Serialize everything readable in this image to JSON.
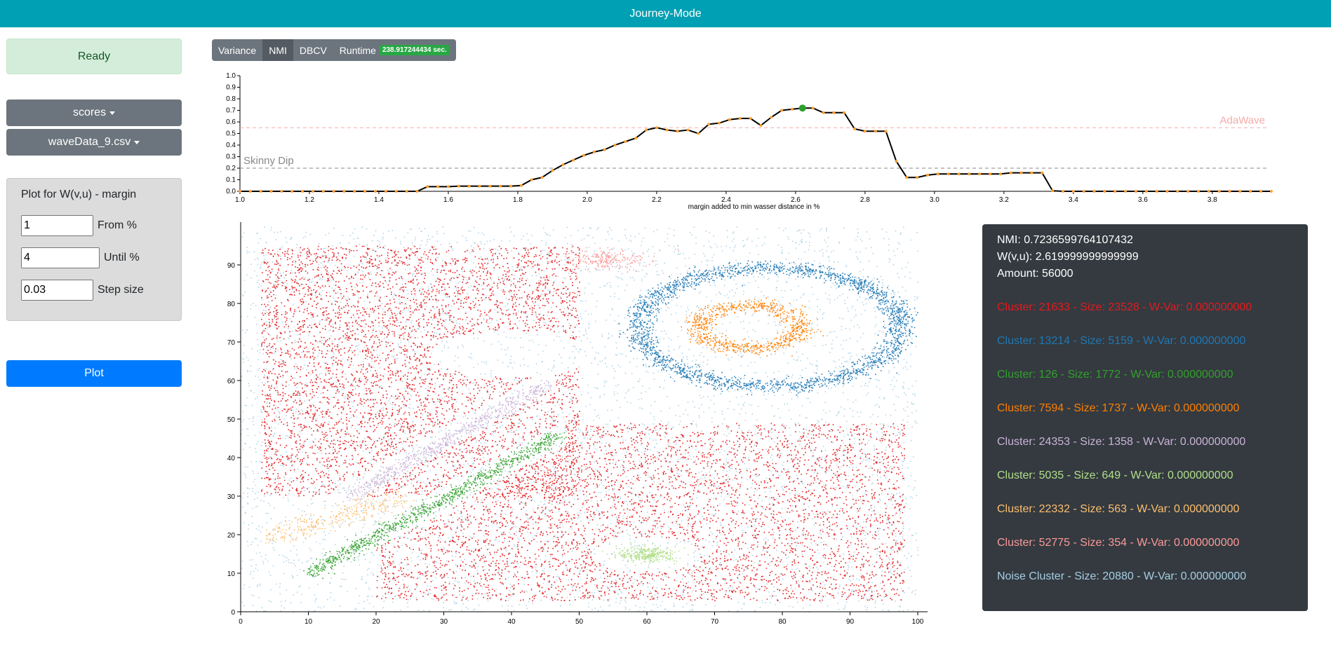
{
  "header": {
    "title": "Journey-Mode"
  },
  "status": {
    "text": "Ready"
  },
  "dropdowns": {
    "metric": "scores",
    "dataset": "waveData_9.csv"
  },
  "form": {
    "title": "Plot for W(v,u) - margin",
    "from_value": "1",
    "from_label": "From %",
    "until_value": "4",
    "until_label": "Until %",
    "step_value": "0.03",
    "step_label": "Step size"
  },
  "plot_button": "Plot",
  "tabs": [
    {
      "label": "Variance",
      "active": false
    },
    {
      "label": "NMI",
      "active": true
    },
    {
      "label": "DBCV",
      "active": false
    },
    {
      "label": "Runtime",
      "active": false
    }
  ],
  "runtime_badge": "238.917244434 sec.",
  "colors": {
    "topbar": "#00a0b4",
    "noise": "#a6cee3"
  },
  "chart_data": [
    {
      "type": "line",
      "xlabel": "margin added to min wasser distance in %",
      "ylabel": "",
      "xlim": [
        1.0,
        3.96
      ],
      "ylim": [
        0,
        1.0
      ],
      "x_ticks": [
        "1.0",
        "1.2",
        "1.4",
        "1.6",
        "1.8",
        "2.0",
        "2.2",
        "2.4",
        "2.6",
        "2.8",
        "3.0",
        "3.2",
        "3.4",
        "3.6",
        "3.8"
      ],
      "y_ticks": [
        "0.0",
        "0.1",
        "0.2",
        "0.3",
        "0.4",
        "0.5",
        "0.6",
        "0.7",
        "0.8",
        "0.9",
        "1.0"
      ],
      "reference_lines": [
        {
          "label": "AdaWave",
          "y": 0.55,
          "color": "#f4a9a8"
        },
        {
          "label": "Skinny Dip",
          "y": 0.2,
          "color": "#888888"
        }
      ],
      "highlight": {
        "x": 2.62,
        "y": 0.72
      },
      "x": [
        1.0,
        1.03,
        1.06,
        1.09,
        1.12,
        1.15,
        1.18,
        1.21,
        1.24,
        1.27,
        1.3,
        1.33,
        1.36,
        1.39,
        1.42,
        1.45,
        1.48,
        1.51,
        1.54,
        1.57,
        1.6,
        1.63,
        1.66,
        1.69,
        1.72,
        1.75,
        1.78,
        1.81,
        1.84,
        1.87,
        1.9,
        1.93,
        1.96,
        1.99,
        2.02,
        2.05,
        2.08,
        2.11,
        2.14,
        2.17,
        2.2,
        2.23,
        2.26,
        2.29,
        2.32,
        2.35,
        2.38,
        2.41,
        2.44,
        2.47,
        2.5,
        2.53,
        2.56,
        2.59,
        2.62,
        2.65,
        2.68,
        2.71,
        2.74,
        2.77,
        2.8,
        2.83,
        2.86,
        2.89,
        2.92,
        2.95,
        2.98,
        3.01,
        3.04,
        3.07,
        3.1,
        3.13,
        3.16,
        3.19,
        3.22,
        3.25,
        3.28,
        3.31,
        3.34,
        3.37,
        3.4,
        3.43,
        3.46,
        3.49,
        3.52,
        3.55,
        3.58,
        3.61,
        3.64,
        3.67,
        3.7,
        3.73,
        3.76,
        3.79,
        3.82,
        3.85,
        3.88,
        3.91,
        3.94,
        3.97
      ],
      "series": [
        {
          "values": [
            0,
            0,
            0,
            0,
            0,
            0,
            0,
            0,
            0,
            0,
            0,
            0,
            0,
            0,
            0,
            0,
            0,
            0,
            0.04,
            0.04,
            0.04,
            0.045,
            0.045,
            0.045,
            0.045,
            0.045,
            0.045,
            0.05,
            0.1,
            0.12,
            0.18,
            0.23,
            0.27,
            0.31,
            0.34,
            0.36,
            0.4,
            0.43,
            0.46,
            0.53,
            0.55,
            0.53,
            0.52,
            0.53,
            0.5,
            0.58,
            0.59,
            0.62,
            0.63,
            0.63,
            0.57,
            0.64,
            0.7,
            0.71,
            0.72,
            0.72,
            0.68,
            0.68,
            0.68,
            0.54,
            0.52,
            0.52,
            0.52,
            0.26,
            0.12,
            0.12,
            0.14,
            0.15,
            0.15,
            0.15,
            0.15,
            0.15,
            0.15,
            0.15,
            0.16,
            0.16,
            0.16,
            0.16,
            0.005,
            0,
            0,
            0,
            0,
            0,
            0,
            0,
            0,
            0,
            0,
            0,
            0,
            0,
            0,
            0,
            0,
            0,
            0,
            0,
            0,
            0
          ]
        }
      ]
    },
    {
      "type": "scatter",
      "xlim": [
        0,
        100
      ],
      "ylim": [
        0,
        100
      ],
      "x_ticks": [
        "0",
        "10",
        "20",
        "30",
        "40",
        "50",
        "60",
        "70",
        "80",
        "90",
        "100"
      ],
      "y_ticks": [
        "0",
        "10",
        "20",
        "30",
        "40",
        "50",
        "60",
        "70",
        "80",
        "90"
      ],
      "series": [
        {
          "name": "Noise Cluster",
          "color": "#a6cee3"
        },
        {
          "name": "Cluster: 21633",
          "color": "#e31a1c"
        },
        {
          "name": "Cluster: 13214",
          "color": "#1f78b4"
        },
        {
          "name": "Cluster: 126",
          "color": "#33a02c"
        },
        {
          "name": "Cluster: 7594",
          "color": "#ff7f00"
        },
        {
          "name": "Cluster: 24353",
          "color": "#cab2d6"
        },
        {
          "name": "Cluster: 5035",
          "color": "#b2df8a"
        },
        {
          "name": "Cluster: 22332",
          "color": "#fdbf6f"
        },
        {
          "name": "Cluster: 52775",
          "color": "#fb9a99"
        }
      ]
    }
  ],
  "info": {
    "nmi": "NMI: 0.7236599764107432",
    "wvu": "W(v,u): 2.619999999999999",
    "amount": "Amount: 56000",
    "clusters": [
      {
        "text": "Cluster: 21633 - Size: 23528 - W-Var: 0.000000000",
        "color": "#e31a1c"
      },
      {
        "text": "Cluster: 13214 - Size: 5159 - W-Var: 0.000000000",
        "color": "#1f78b4"
      },
      {
        "text": "Cluster: 126 - Size: 1772 - W-Var: 0.000000000",
        "color": "#33a02c"
      },
      {
        "text": "Cluster: 7594 - Size: 1737 - W-Var: 0.000000000",
        "color": "#ff7f00"
      },
      {
        "text": "Cluster: 24353 - Size: 1358 - W-Var: 0.000000000",
        "color": "#cab2d6"
      },
      {
        "text": "Cluster: 5035 - Size: 649 - W-Var: 0.000000000",
        "color": "#b2df8a"
      },
      {
        "text": "Cluster: 22332 - Size: 563 - W-Var: 0.000000000",
        "color": "#fdbf6f"
      },
      {
        "text": "Cluster: 52775 - Size: 354 - W-Var: 0.000000000",
        "color": "#fb9a99"
      },
      {
        "text": "Noise Cluster - Size: 20880 - W-Var: 0.000000000",
        "color": "#a6cee3"
      }
    ]
  }
}
